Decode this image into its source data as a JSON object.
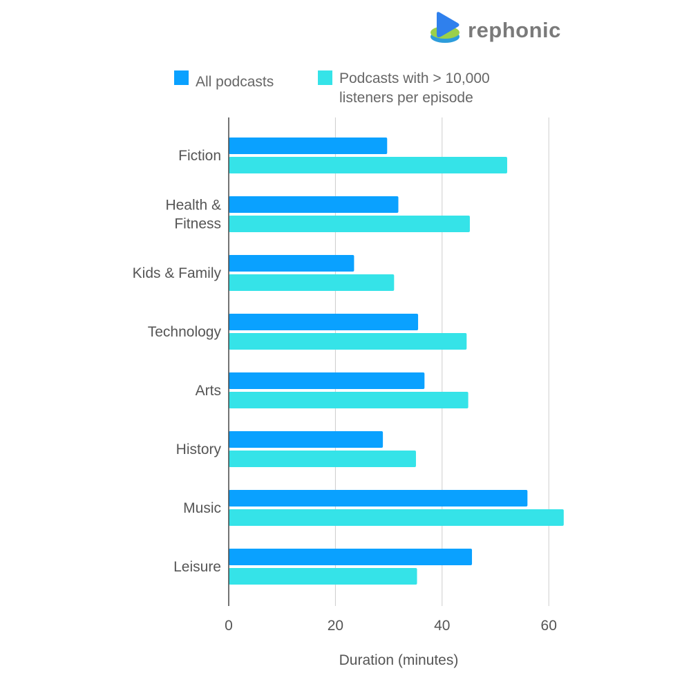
{
  "brand": {
    "name": "rephonic",
    "icon": "play-logo-icon",
    "colors": {
      "play": "#2F80ED",
      "base": "#8BC34A",
      "base_dark": "#2D9CDB"
    }
  },
  "legend": {
    "placement": "top",
    "items": [
      {
        "label_lines": [
          "All podcasts"
        ],
        "color": "#0AA1FF"
      },
      {
        "label_lines": [
          "Podcasts with > 10,000",
          "listeners per episode"
        ],
        "color": "#35E3E8"
      }
    ]
  },
  "chart_data": {
    "type": "bar",
    "orientation": "horizontal",
    "title": "",
    "xlabel": "Duration (minutes)",
    "ylabel": "",
    "xlim": [
      0,
      65
    ],
    "xticks": [
      0,
      20,
      40,
      60
    ],
    "grid": true,
    "categories": [
      [
        "Fiction"
      ],
      [
        "Health &",
        "Fitness"
      ],
      [
        "Kids & Family"
      ],
      [
        "Technology"
      ],
      [
        "Arts"
      ],
      [
        "History"
      ],
      [
        "Music"
      ],
      [
        "Leisure"
      ]
    ],
    "series": [
      {
        "name": "All podcasts",
        "color": "#0AA1FF",
        "values": [
          29.7,
          31.8,
          23.5,
          35.5,
          36.7,
          28.9,
          56.0,
          45.6
        ]
      },
      {
        "name": "Podcasts with > 10,000 listeners per episode",
        "color": "#35E3E8",
        "values": [
          52.2,
          45.2,
          31.0,
          44.6,
          44.9,
          35.1,
          62.8,
          35.3
        ]
      }
    ]
  }
}
